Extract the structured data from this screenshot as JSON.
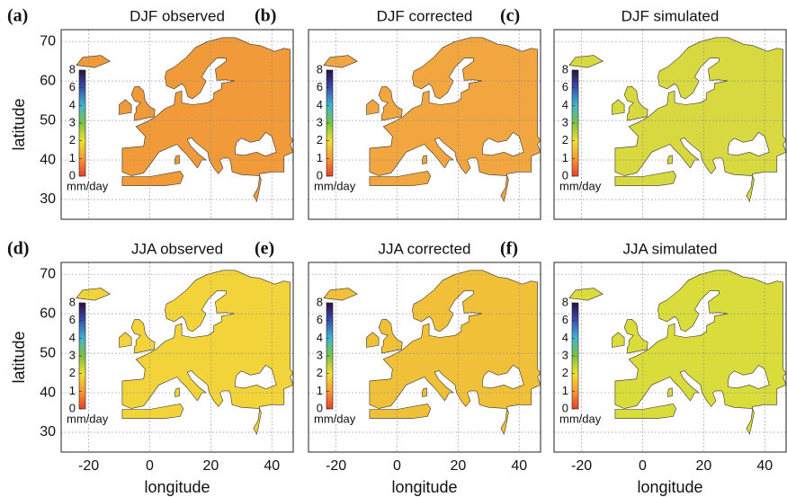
{
  "chart_data": [
    {
      "type": "map",
      "label": "(a)",
      "title": "DJF observed",
      "y_label": "latitude",
      "xlim": [
        -29,
        47
      ],
      "ylim": [
        25,
        73
      ],
      "xticks": [
        -20,
        0,
        20,
        40
      ],
      "yticks": [
        30,
        40,
        50,
        60,
        70
      ],
      "grid": true,
      "land_color": "#f09a3a",
      "colorbar": {
        "ticks": [
          0,
          1,
          2,
          3,
          4,
          6,
          8
        ],
        "colors": [
          "#e8412a",
          "#f59b32",
          "#f0e030",
          "#7cc242",
          "#3fb6d0",
          "#3a4fb0",
          "#2a1040"
        ],
        "unit": "mm/day"
      }
    },
    {
      "type": "map",
      "label": "(b)",
      "title": "DJF corrected",
      "xlim": [
        -29,
        47
      ],
      "ylim": [
        25,
        73
      ],
      "xticks": [
        -20,
        0,
        20,
        40
      ],
      "yticks": [
        30,
        40,
        50,
        60,
        70
      ],
      "grid": true,
      "land_color": "#f2a640",
      "colorbar": {
        "ticks": [
          0,
          1,
          2,
          3,
          4,
          6,
          8
        ],
        "colors": [
          "#e8412a",
          "#f59b32",
          "#f0e030",
          "#7cc242",
          "#3fb6d0",
          "#3a4fb0",
          "#2a1040"
        ],
        "unit": "mm/day"
      }
    },
    {
      "type": "map",
      "label": "(c)",
      "title": "DJF simulated",
      "xlim": [
        -29,
        47
      ],
      "ylim": [
        25,
        73
      ],
      "xticks": [
        -20,
        0,
        20,
        40
      ],
      "yticks": [
        30,
        40,
        50,
        60,
        70
      ],
      "grid": true,
      "land_color": "#d8d840",
      "colorbar": {
        "ticks": [
          0,
          1,
          2,
          3,
          4,
          6,
          8
        ],
        "colors": [
          "#e8412a",
          "#f59b32",
          "#f0e030",
          "#7cc242",
          "#3fb6d0",
          "#3a4fb0",
          "#2a1040"
        ],
        "unit": "mm/day"
      }
    },
    {
      "type": "map",
      "label": "(d)",
      "title": "JJA observed",
      "x_label": "longitude",
      "y_label": "latitude",
      "xlim": [
        -29,
        47
      ],
      "ylim": [
        25,
        73
      ],
      "xticks": [
        -20,
        0,
        20,
        40
      ],
      "yticks": [
        30,
        40,
        50,
        60,
        70
      ],
      "grid": true,
      "land_color": "#f2d43a",
      "colorbar": {
        "ticks": [
          0,
          1,
          2,
          3,
          4,
          6,
          8
        ],
        "colors": [
          "#e8412a",
          "#f59b32",
          "#f0e030",
          "#7cc242",
          "#3fb6d0",
          "#3a4fb0",
          "#2a1040"
        ],
        "unit": "mm/day"
      }
    },
    {
      "type": "map",
      "label": "(e)",
      "title": "JJA corrected",
      "x_label": "longitude",
      "xlim": [
        -29,
        47
      ],
      "ylim": [
        25,
        73
      ],
      "xticks": [
        -20,
        0,
        20,
        40
      ],
      "yticks": [
        30,
        40,
        50,
        60,
        70
      ],
      "grid": true,
      "land_color": "#f0c038",
      "colorbar": {
        "ticks": [
          0,
          1,
          2,
          3,
          4,
          6,
          8
        ],
        "colors": [
          "#e8412a",
          "#f59b32",
          "#f0e030",
          "#7cc242",
          "#3fb6d0",
          "#3a4fb0",
          "#2a1040"
        ],
        "unit": "mm/day"
      }
    },
    {
      "type": "map",
      "label": "(f)",
      "title": "JJA simulated",
      "x_label": "longitude",
      "xlim": [
        -29,
        47
      ],
      "ylim": [
        25,
        73
      ],
      "xticks": [
        -20,
        0,
        20,
        40
      ],
      "yticks": [
        30,
        40,
        50,
        60,
        70
      ],
      "grid": true,
      "land_color": "#d9dc3a",
      "colorbar": {
        "ticks": [
          0,
          1,
          2,
          3,
          4,
          6,
          8
        ],
        "colors": [
          "#e8412a",
          "#f59b32",
          "#f0e030",
          "#7cc242",
          "#3fb6d0",
          "#3a4fb0",
          "#2a1040"
        ],
        "unit": "mm/day"
      }
    }
  ]
}
